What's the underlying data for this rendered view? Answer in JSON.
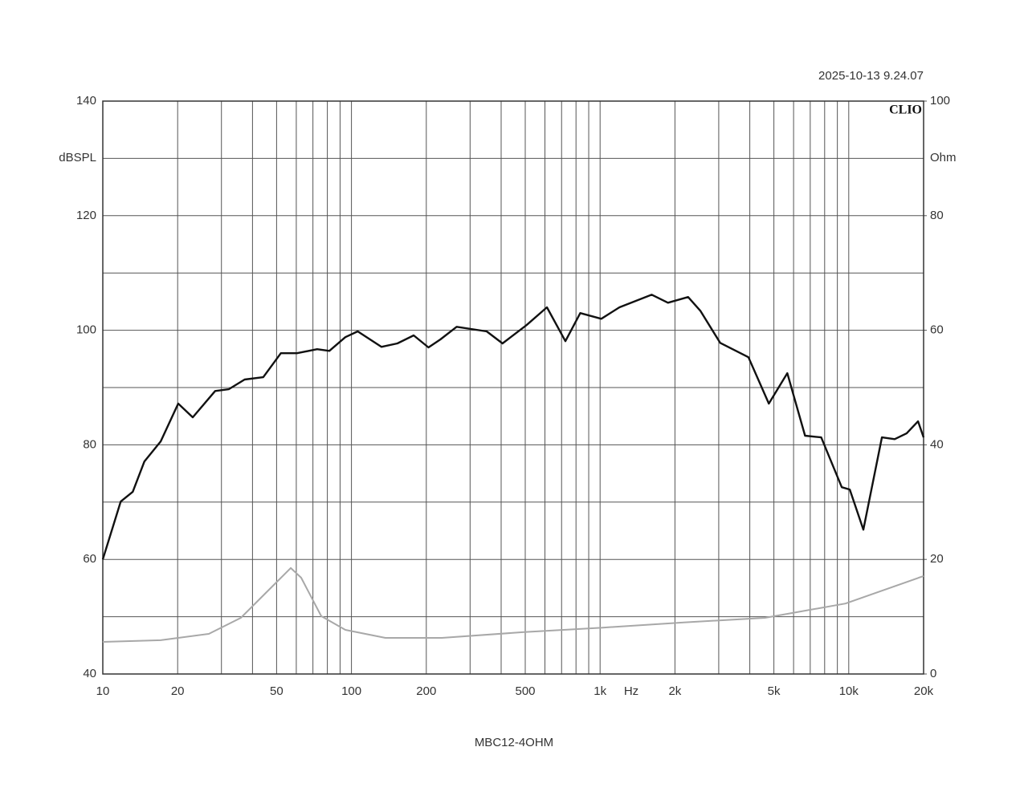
{
  "chart_data": {
    "type": "line",
    "title": "MBC12-4OHM",
    "timestamp": "2025-10-13 9.24.07",
    "brand": "CLIO",
    "y_label": "dBSPL",
    "y2_label": "Ohm",
    "x_label": "Hz",
    "log_x": true,
    "grid": true,
    "xlim": [
      10,
      20000
    ],
    "xticks": [
      10,
      20,
      50,
      100,
      200,
      500,
      {
        "value": 1000,
        "label": "1k"
      },
      {
        "value": 2000,
        "label": "2k"
      },
      {
        "value": 5000,
        "label": "5k"
      },
      {
        "value": 10000,
        "label": "10k"
      },
      {
        "value": 20000,
        "label": "20k"
      }
    ],
    "xgrid_minor": [
      30,
      40,
      60,
      70,
      80,
      90,
      300,
      400,
      600,
      700,
      800,
      900,
      3000,
      4000,
      6000,
      7000,
      8000,
      9000
    ],
    "ylim": [
      40,
      140
    ],
    "yticks": [
      40,
      60,
      80,
      100,
      120,
      140
    ],
    "ygrid_minor": [
      50,
      70,
      90,
      110,
      130
    ],
    "y2lim": [
      0,
      100
    ],
    "y2ticks": [
      0,
      20,
      40,
      60,
      80,
      100
    ],
    "series": [
      {
        "color": "#111111",
        "x": [
          10,
          11.8,
          13.2,
          14.7,
          17.1,
          20.1,
          23,
          28.3,
          32.1,
          37.2,
          44.2,
          52,
          60.4,
          72.8,
          81.5,
          94.5,
          106,
          132,
          153,
          178,
          204,
          228,
          265,
          350,
          405,
          506,
          611,
          725,
          832,
          1011,
          1196,
          1613,
          1874,
          2260,
          2530,
          3040,
          3950,
          4770,
          5660,
          6670,
          7750,
          9370,
          10100,
          11450,
          13600,
          15300,
          17100,
          19000,
          20000
        ],
        "values": [
          60,
          70.1,
          71.8,
          77.1,
          80.6,
          87.2,
          84.8,
          89.4,
          89.7,
          91.4,
          91.8,
          96,
          96,
          96.7,
          96.4,
          98.8,
          99.8,
          97.1,
          97.7,
          99.1,
          97,
          98.4,
          100.6,
          99.8,
          97.7,
          100.9,
          104,
          98.1,
          103,
          102,
          104,
          106.2,
          104.8,
          105.8,
          103.4,
          97.8,
          95.3,
          87.2,
          92.5,
          81.6,
          81.3,
          72.6,
          72.2,
          65.2,
          81.3,
          81,
          82,
          84.1,
          81.3
        ]
      },
      {
        "color": "#a8a8a8",
        "axis": "y2",
        "x": [
          10,
          17.1,
          26.7,
          35.9,
          44.9,
          57,
          62.8,
          75.6,
          94.5,
          137,
          231,
          488,
          1026,
          2170,
          4600,
          9700,
          20000
        ],
        "values": [
          5.6,
          5.9,
          7,
          9.8,
          14,
          18.5,
          16.8,
          10.1,
          7.7,
          6.3,
          6.3,
          7.3,
          8.1,
          9,
          9.8,
          12.3,
          17.1
        ]
      }
    ]
  }
}
